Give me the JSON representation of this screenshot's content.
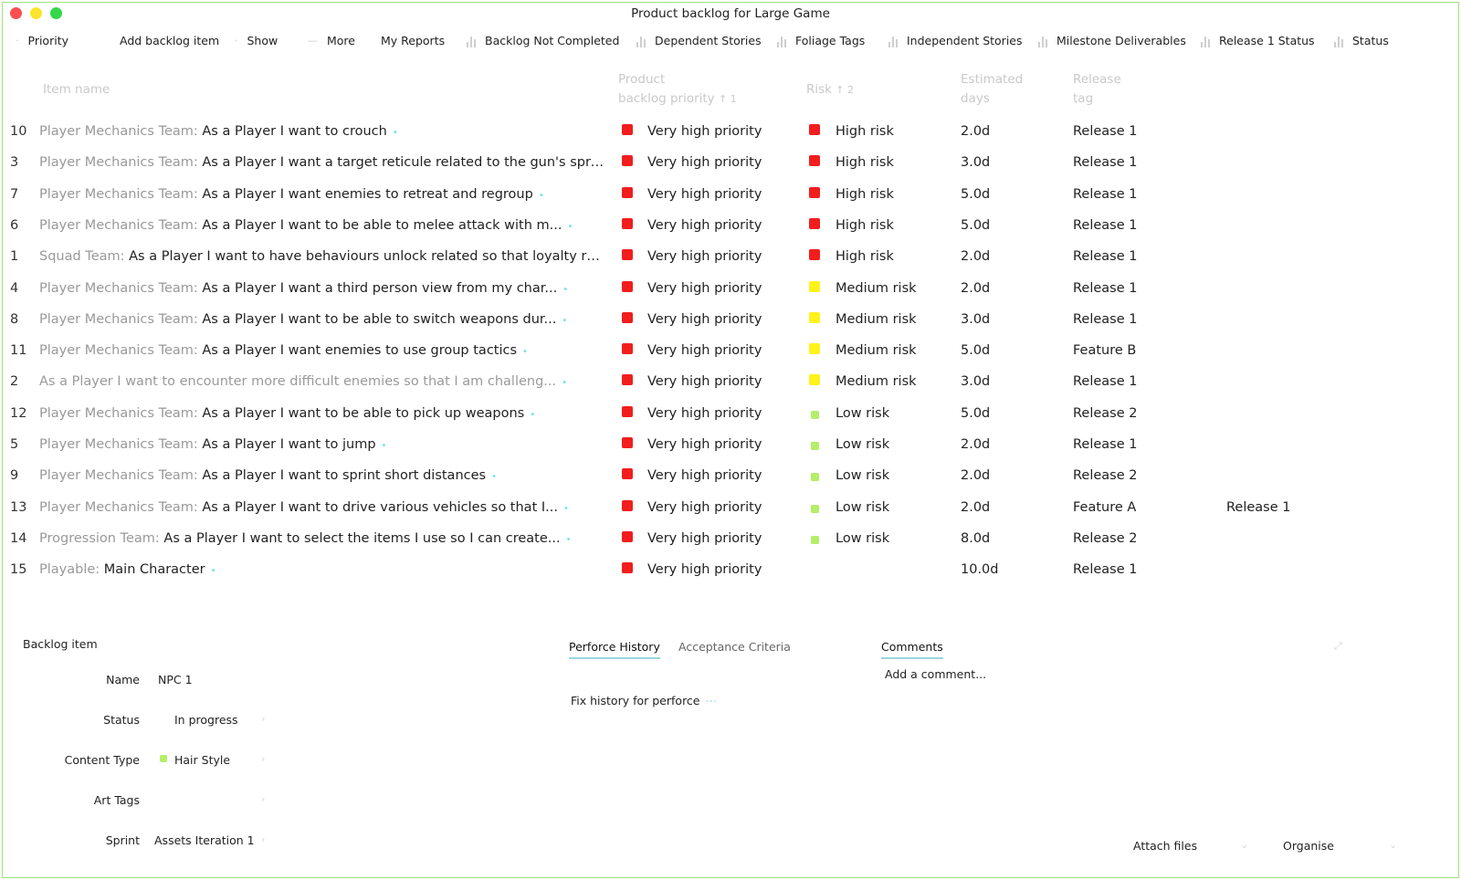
{
  "window": {
    "title": "Product backlog for Large Game"
  },
  "toolbar": {
    "items": [
      {
        "label": "Priority"
      },
      {
        "label": "Add backlog item"
      },
      {
        "label": "Show"
      },
      {
        "label": "More"
      },
      {
        "label": "My Reports"
      },
      {
        "label": "Backlog Not Completed"
      },
      {
        "label": "Dependent Stories"
      },
      {
        "label": "Foliage Tags"
      },
      {
        "label": "Independent Stories"
      },
      {
        "label": "Milestone Deliverables"
      },
      {
        "label": "Release 1 Status"
      },
      {
        "label": "Status"
      }
    ]
  },
  "table": {
    "headers": {
      "item_name": "Item name",
      "priority_line1": "Product",
      "priority_line2": "backlog priority",
      "priority_sort": "↑ 1",
      "risk": "Risk",
      "risk_sort": "↑ 2",
      "est_line1": "Estimated",
      "est_line2": "days",
      "rel_line1": "Release",
      "rel_line2": "tag"
    },
    "rows": [
      {
        "num": "10",
        "team": "Player Mechanics Team:",
        "story": "As a Player I want to crouch",
        "priority": "Very high priority",
        "risk": "High risk",
        "risk_level": "high",
        "est": "2.0d",
        "release": "Release 1",
        "release2": ""
      },
      {
        "num": "3",
        "team": "Player Mechanics Team:",
        "story": "As a Player I want a target reticule related to the gun's spre...",
        "priority": "Very high priority",
        "risk": "High risk",
        "risk_level": "high",
        "est": "3.0d",
        "release": "Release 1",
        "release2": ""
      },
      {
        "num": "7",
        "team": "Player Mechanics Team:",
        "story": "As a Player I want enemies to retreat and regroup",
        "priority": "Very high priority",
        "risk": "High risk",
        "risk_level": "high",
        "est": "5.0d",
        "release": "Release 1",
        "release2": ""
      },
      {
        "num": "6",
        "team": "Player Mechanics Team:",
        "story": "As a Player I want to be able to melee attack with m...",
        "priority": "Very high priority",
        "risk": "High risk",
        "risk_level": "high",
        "est": "5.0d",
        "release": "Release 1",
        "release2": ""
      },
      {
        "num": "1",
        "team": "Squad Team:",
        "story": "As a Player I want to have behaviours unlock related so that loyalty rat...",
        "priority": "Very high priority",
        "risk": "High risk",
        "risk_level": "high",
        "est": "2.0d",
        "release": "Release 1",
        "release2": ""
      },
      {
        "num": "4",
        "team": "Player Mechanics Team:",
        "story": "As a Player I want a third person view from my char...",
        "priority": "Very high priority",
        "risk": "Medium risk",
        "risk_level": "medium",
        "est": "2.0d",
        "release": "Release 1",
        "release2": ""
      },
      {
        "num": "8",
        "team": "Player Mechanics Team:",
        "story": "As a Player I want to be able to switch weapons dur...",
        "priority": "Very high priority",
        "risk": "Medium risk",
        "risk_level": "medium",
        "est": "3.0d",
        "release": "Release 1",
        "release2": ""
      },
      {
        "num": "11",
        "team": "Player Mechanics Team:",
        "story": "As a Player I want enemies to use group tactics",
        "priority": "Very high priority",
        "risk": "Medium risk",
        "risk_level": "medium",
        "est": "5.0d",
        "release": "Feature B",
        "release2": ""
      },
      {
        "num": "2",
        "team": "",
        "story": "As a Player I want to encounter more difficult enemies so that I am challeng...",
        "priority": "Very high priority",
        "risk": "Medium risk",
        "risk_level": "medium",
        "est": "3.0d",
        "release": "Release 1",
        "release2": "",
        "faded": true
      },
      {
        "num": "12",
        "team": "Player Mechanics Team:",
        "story": "As a Player I want to be able to pick up weapons",
        "priority": "Very high priority",
        "risk": "Low risk",
        "risk_level": "low",
        "est": "5.0d",
        "release": "Release 2",
        "release2": ""
      },
      {
        "num": "5",
        "team": "Player Mechanics Team:",
        "story": "As a Player I want to jump",
        "priority": "Very high priority",
        "risk": "Low risk",
        "risk_level": "low",
        "est": "2.0d",
        "release": "Release 1",
        "release2": ""
      },
      {
        "num": "9",
        "team": "Player Mechanics Team:",
        "story": "As a Player I want to sprint short distances",
        "priority": "Very high priority",
        "risk": "Low risk",
        "risk_level": "low",
        "est": "2.0d",
        "release": "Release 2",
        "release2": ""
      },
      {
        "num": "13",
        "team": "Player Mechanics Team:",
        "story": "As a Player I want to drive various vehicles so that I...",
        "priority": "Very high priority",
        "risk": "Low risk",
        "risk_level": "low",
        "est": "2.0d",
        "release": "Feature A",
        "release2": "Release 1"
      },
      {
        "num": "14",
        "team": "Progression Team:",
        "story": "As a Player I want to select the items I use so I can create...",
        "priority": "Very high priority",
        "risk": "Low risk",
        "risk_level": "low",
        "est": "8.0d",
        "release": "Release 2",
        "release2": ""
      },
      {
        "num": "15",
        "team": "Playable:",
        "story": "Main Character",
        "priority": "Very high priority",
        "risk": "",
        "risk_level": "none",
        "est": "10.0d",
        "release": "Release 1",
        "release2": ""
      }
    ]
  },
  "colors": {
    "priority_very_high": "#f21d1d",
    "risk_high": "#f21d1d",
    "risk_medium": "#fff21a",
    "risk_low": "#b5ee6a",
    "accent_dot": "#6ee2ea",
    "window_border": "#9fe47a"
  },
  "detail": {
    "section_title": "Backlog item",
    "fields": [
      {
        "label": "Name",
        "value": "NPC 1"
      },
      {
        "label": "Status",
        "value": "In progress"
      },
      {
        "label": "Content Type",
        "value": "Hair Style"
      },
      {
        "label": "Art Tags",
        "value": ""
      },
      {
        "label": "Sprint",
        "value": "Assets Iteration 1"
      }
    ],
    "tabs": {
      "perforce": "Perforce History",
      "acceptance": "Acceptance Criteria",
      "comments": "Comments"
    },
    "perforce_text": "Fix history for perforce",
    "comment_placeholder": "Add a comment...",
    "attach_files": "Attach files",
    "organise": "Organise"
  }
}
